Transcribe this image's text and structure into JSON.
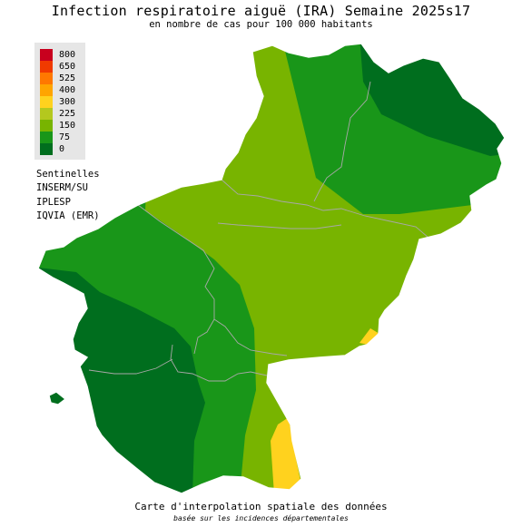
{
  "title": "Infection respiratoire aiguë (IRA) Semaine 2025s17",
  "subtitle": "en nombre de cas pour 100 000 habitants",
  "legend": {
    "items": [
      {
        "label": "800",
        "color": "#c8001e"
      },
      {
        "label": "650",
        "color": "#f03a00"
      },
      {
        "label": "525",
        "color": "#ff7800"
      },
      {
        "label": "400",
        "color": "#ffa500"
      },
      {
        "label": "300",
        "color": "#ffd21e"
      },
      {
        "label": "225",
        "color": "#b4c81e"
      },
      {
        "label": "150",
        "color": "#78b400"
      },
      {
        "label": "75",
        "color": "#199619"
      },
      {
        "label": "0",
        "color": "#006e1e"
      }
    ]
  },
  "sources": [
    "Sentinelles",
    "INSERM/SU",
    "IPLESP",
    "IQVIA (EMR)"
  ],
  "footer": {
    "line1": "Carte d'interpolation spatiale des données",
    "line2": "basée sur les incidences départementales"
  }
}
